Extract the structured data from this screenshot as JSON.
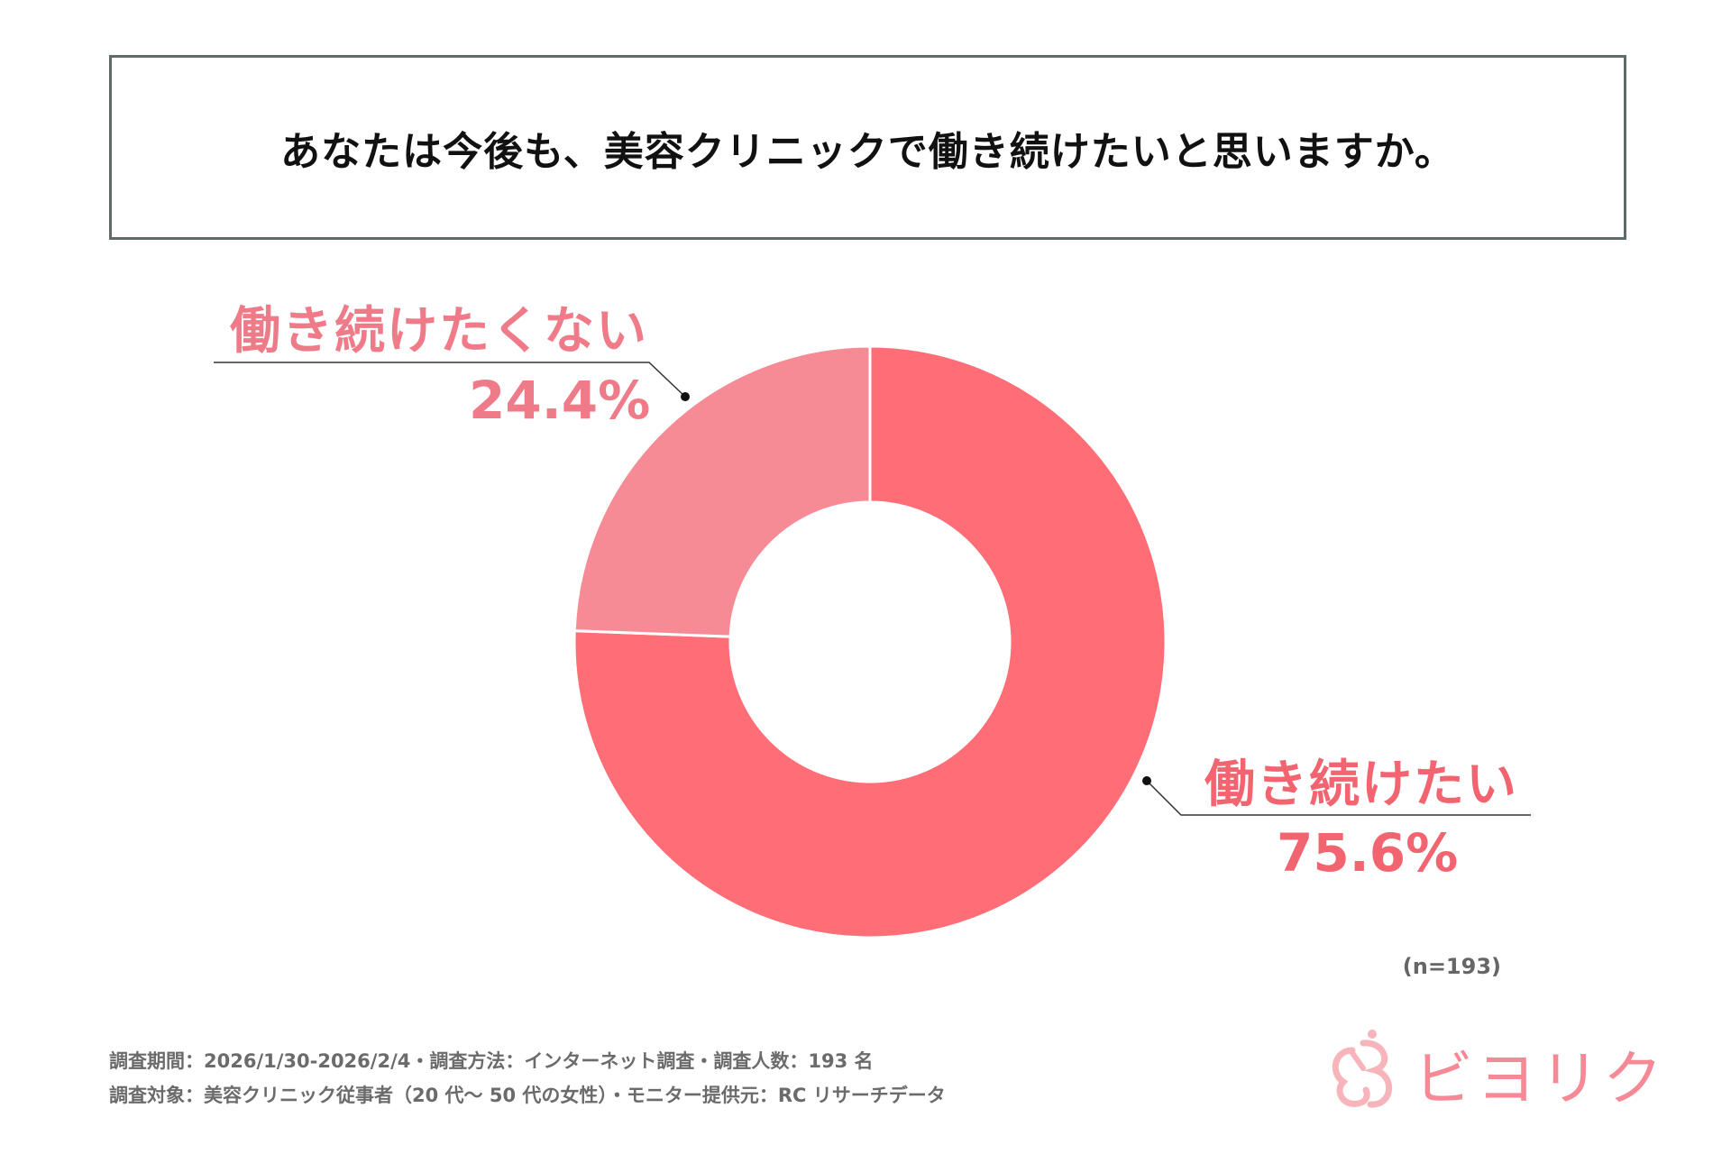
{
  "title": "あなたは今後も、美容クリニックで働き続けたいと思いますか。",
  "chart_data": {
    "type": "pie",
    "variant": "donut",
    "title": "あなたは今後も、美容クリニックで働き続けたいと思いますか。",
    "slices": [
      {
        "label": "働き続けたい",
        "value": 75.6,
        "value_label": "75.6%",
        "color": "#ff6e77"
      },
      {
        "label": "働き続けたくない",
        "value": 24.4,
        "value_label": "24.4%",
        "color": "#f78b95"
      }
    ],
    "sample_size": "(n=193)"
  },
  "footer": {
    "line1": "調査期間：2026/1/30-2026/2/4・調査方法：インターネット調査・調査人数：193 名",
    "line2": "調査対象：美容クリニック従事者（20 代～ 50 代の女性）・モニター提供元：RC リサーチデータ"
  },
  "logo": {
    "text": "ビヨリク",
    "color": "#f58a96"
  }
}
